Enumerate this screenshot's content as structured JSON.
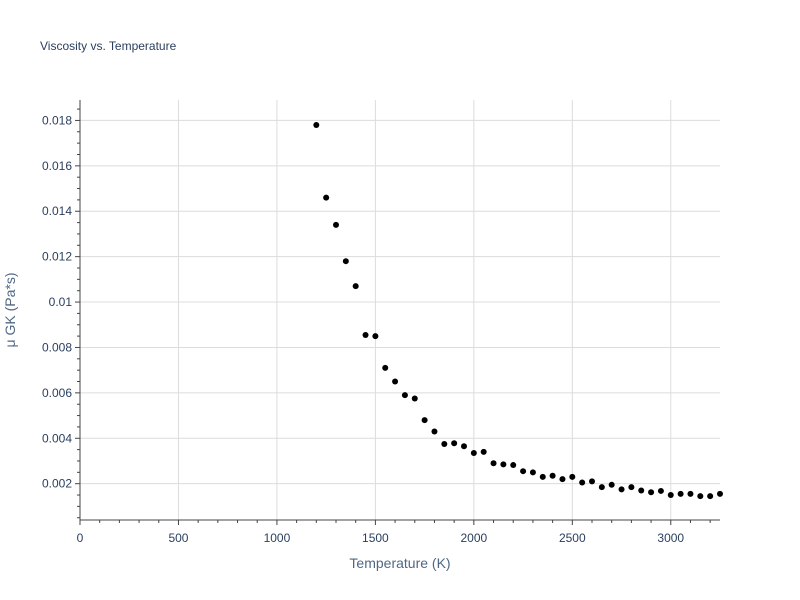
{
  "chart_data": {
    "type": "scatter",
    "title": "Viscosity vs. Temperature",
    "xlabel": "Temperature (K)",
    "ylabel": "μ GK (Pa*s)",
    "xlim": [
      0,
      3250
    ],
    "ylim": [
      0.0004,
      0.0189
    ],
    "x_ticks": [
      0,
      500,
      1000,
      1500,
      2000,
      2500,
      3000
    ],
    "x_tick_labels": [
      "0",
      "500",
      "1000",
      "1500",
      "2000",
      "2500",
      "3000"
    ],
    "y_ticks": [
      0.002,
      0.004,
      0.006,
      0.008,
      0.01,
      0.012,
      0.014,
      0.016,
      0.018
    ],
    "y_tick_labels": [
      "0.002",
      "0.004",
      "0.006",
      "0.008",
      "0.01",
      "0.012",
      "0.014",
      "0.016",
      "0.018"
    ],
    "grid": true,
    "marker_color": "#000000",
    "x": [
      1200,
      1250,
      1300,
      1350,
      1400,
      1450,
      1500,
      1550,
      1600,
      1650,
      1700,
      1750,
      1800,
      1850,
      1900,
      1950,
      2000,
      2050,
      2100,
      2150,
      2200,
      2250,
      2300,
      2350,
      2400,
      2450,
      2500,
      2550,
      2600,
      2650,
      2700,
      2750,
      2800,
      2850,
      2900,
      2950,
      3000,
      3050,
      3100,
      3150,
      3200,
      3250
    ],
    "y": [
      0.0178,
      0.0146,
      0.0134,
      0.0118,
      0.0107,
      0.00855,
      0.0085,
      0.0071,
      0.0065,
      0.0059,
      0.00575,
      0.0048,
      0.0043,
      0.00375,
      0.00378,
      0.00365,
      0.00335,
      0.0034,
      0.0029,
      0.00285,
      0.00282,
      0.00255,
      0.0025,
      0.0023,
      0.00235,
      0.0022,
      0.0023,
      0.00205,
      0.0021,
      0.00185,
      0.00195,
      0.00175,
      0.00185,
      0.0017,
      0.00162,
      0.00168,
      0.0015,
      0.00155,
      0.00155,
      0.00145,
      0.00145,
      0.00155
    ]
  }
}
